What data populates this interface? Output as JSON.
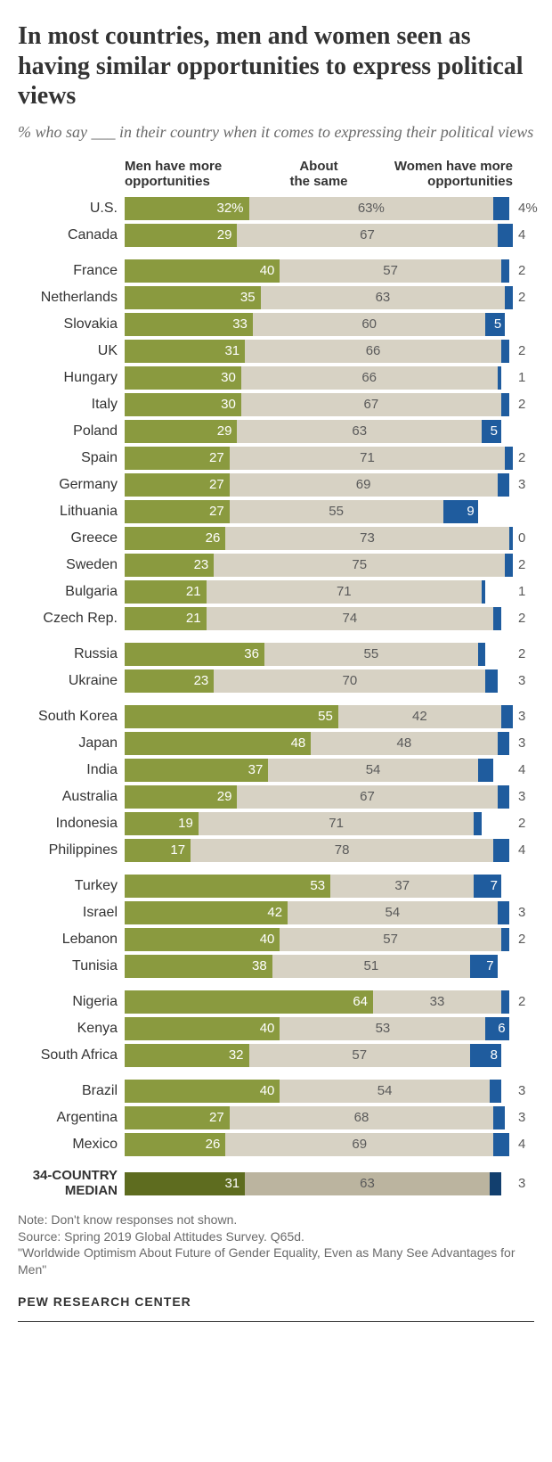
{
  "title": "In most countries, men and women seen as having similar opportunities to express political views",
  "title_fontsize": 28,
  "subtitle": "% who say ___ in their country when it comes to expressing their political views",
  "subtitle_fontsize": 18,
  "headers": {
    "men": "Men have more\nopportunities",
    "same": "About\nthe same",
    "women": "Women have more\nopportunities"
  },
  "colors": {
    "men": "#8a9a3f",
    "same": "#d7d2c4",
    "women": "#1f5c9e",
    "men_median": "#5e6c1f",
    "same_median": "#bbb49f",
    "women_median": "#123f6e",
    "text_dark": "#333333",
    "text_muted": "#5a5a5a"
  },
  "women_inside_threshold": 5,
  "groups": [
    {
      "rows": [
        {
          "country": "U.S.",
          "men": 32,
          "same": 63,
          "women": 4,
          "men_suffix": "%",
          "same_suffix": "%",
          "women_suffix": "%"
        },
        {
          "country": "Canada",
          "men": 29,
          "same": 67,
          "women": 4
        }
      ]
    },
    {
      "rows": [
        {
          "country": "France",
          "men": 40,
          "same": 57,
          "women": 2
        },
        {
          "country": "Netherlands",
          "men": 35,
          "same": 63,
          "women": 2
        },
        {
          "country": "Slovakia",
          "men": 33,
          "same": 60,
          "women": 5
        },
        {
          "country": "UK",
          "men": 31,
          "same": 66,
          "women": 2
        },
        {
          "country": "Hungary",
          "men": 30,
          "same": 66,
          "women": 1
        },
        {
          "country": "Italy",
          "men": 30,
          "same": 67,
          "women": 2
        },
        {
          "country": "Poland",
          "men": 29,
          "same": 63,
          "women": 5
        },
        {
          "country": "Spain",
          "men": 27,
          "same": 71,
          "women": 2
        },
        {
          "country": "Germany",
          "men": 27,
          "same": 69,
          "women": 3
        },
        {
          "country": "Lithuania",
          "men": 27,
          "same": 55,
          "women": 9
        },
        {
          "country": "Greece",
          "men": 26,
          "same": 73,
          "women": 0
        },
        {
          "country": "Sweden",
          "men": 23,
          "same": 75,
          "women": 2
        },
        {
          "country": "Bulgaria",
          "men": 21,
          "same": 71,
          "women": 1
        },
        {
          "country": "Czech Rep.",
          "men": 21,
          "same": 74,
          "women": 2
        }
      ]
    },
    {
      "rows": [
        {
          "country": "Russia",
          "men": 36,
          "same": 55,
          "women": 2
        },
        {
          "country": "Ukraine",
          "men": 23,
          "same": 70,
          "women": 3
        }
      ]
    },
    {
      "rows": [
        {
          "country": "South Korea",
          "men": 55,
          "same": 42,
          "women": 3
        },
        {
          "country": "Japan",
          "men": 48,
          "same": 48,
          "women": 3
        },
        {
          "country": "India",
          "men": 37,
          "same": 54,
          "women": 4
        },
        {
          "country": "Australia",
          "men": 29,
          "same": 67,
          "women": 3
        },
        {
          "country": "Indonesia",
          "men": 19,
          "same": 71,
          "women": 2
        },
        {
          "country": "Philippines",
          "men": 17,
          "same": 78,
          "women": 4
        }
      ]
    },
    {
      "rows": [
        {
          "country": "Turkey",
          "men": 53,
          "same": 37,
          "women": 7
        },
        {
          "country": "Israel",
          "men": 42,
          "same": 54,
          "women": 3
        },
        {
          "country": "Lebanon",
          "men": 40,
          "same": 57,
          "women": 2
        },
        {
          "country": "Tunisia",
          "men": 38,
          "same": 51,
          "women": 7
        }
      ]
    },
    {
      "rows": [
        {
          "country": "Nigeria",
          "men": 64,
          "same": 33,
          "women": 2
        },
        {
          "country": "Kenya",
          "men": 40,
          "same": 53,
          "women": 6
        },
        {
          "country": "South Africa",
          "men": 32,
          "same": 57,
          "women": 8
        }
      ]
    },
    {
      "rows": [
        {
          "country": "Brazil",
          "men": 40,
          "same": 54,
          "women": 3
        },
        {
          "country": "Argentina",
          "men": 27,
          "same": 68,
          "women": 3
        },
        {
          "country": "Mexico",
          "men": 26,
          "same": 69,
          "women": 4
        }
      ]
    }
  ],
  "median": {
    "label": "34-COUNTRY\nMEDIAN",
    "men": 31,
    "same": 63,
    "women": 3
  },
  "note_lines": [
    "Note: Don't know responses not shown.",
    "Source: Spring 2019 Global Attitudes Survey. Q65d.",
    "\"Worldwide Optimism About Future of Gender Equality, Even as Many See Advantages for Men\""
  ],
  "brand": "PEW RESEARCH CENTER"
}
